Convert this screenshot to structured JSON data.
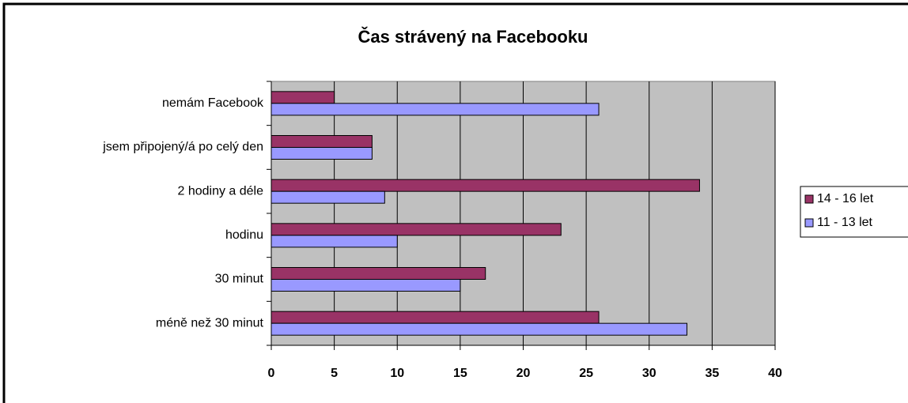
{
  "chart_data": {
    "type": "barh",
    "title": "Čas strávený na Facebooku",
    "categories": [
      "nemám Facebook",
      "jsem připojený/á po celý den",
      "2 hodiny a déle",
      "hodinu",
      "30 minut",
      "méně než 30 minut"
    ],
    "series": [
      {
        "name": "14 - 16 let",
        "color": "#993366",
        "values": [
          5,
          8,
          34,
          23,
          17,
          26
        ]
      },
      {
        "name": "11 - 13 let",
        "color": "#9999ff",
        "values": [
          26,
          8,
          9,
          10,
          15,
          33
        ]
      }
    ],
    "xlim": [
      0,
      40
    ],
    "xticks": [
      0,
      5,
      10,
      15,
      20,
      25,
      30,
      35,
      40
    ],
    "grid": true,
    "legend": "right"
  }
}
